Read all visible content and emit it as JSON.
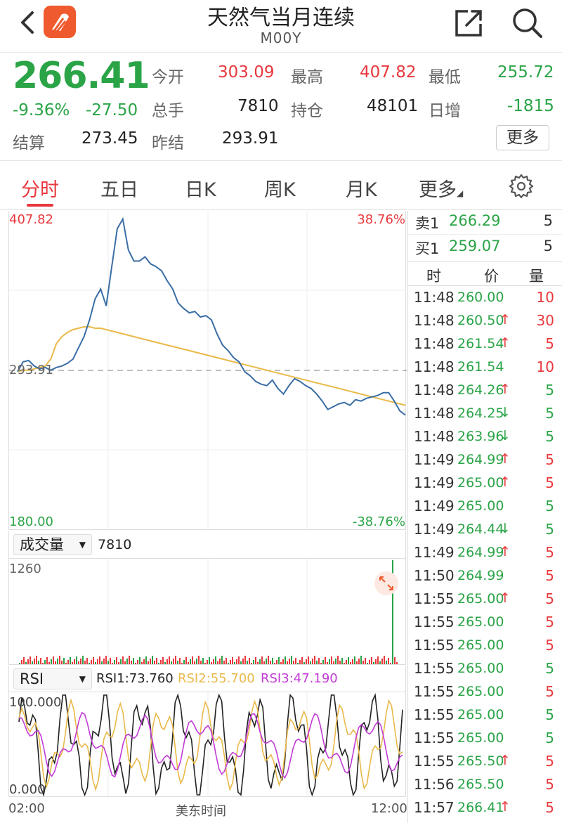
{
  "header": {
    "title": "天然气当月连续",
    "code": "M00Y",
    "back_icon": "chevron-left-icon",
    "logo_icon": "app-logo-icon",
    "share_icon": "share-icon",
    "search_icon": "search-icon"
  },
  "quote": {
    "price": "266.41",
    "change_pct": "-9.36%",
    "change": "-27.50",
    "open_label": "今开",
    "open": "303.09",
    "high_label": "最高",
    "high": "407.82",
    "low_label": "最低",
    "low": "255.72",
    "volume_label": "总手",
    "volume": "7810",
    "oi_label": "持仓",
    "oi": "48101",
    "daily_inc_label": "日增",
    "daily_inc": "-1815",
    "settle_label": "结算",
    "settle": "273.45",
    "prev_settle_label": "昨结",
    "prev_settle": "293.91",
    "more_label": "更多"
  },
  "tabs": [
    {
      "label": "分时",
      "active": true
    },
    {
      "label": "五日"
    },
    {
      "label": "日K"
    },
    {
      "label": "周K"
    },
    {
      "label": "月K"
    },
    {
      "label": "更多"
    }
  ],
  "chart": {
    "y_max": "407.82",
    "y_mid": "293.91",
    "y_min": "180.00",
    "pct_max": "38.76%",
    "pct_min": "-38.76%"
  },
  "volume_panel": {
    "selector": "成交量",
    "value": "7810",
    "max_label": "1260"
  },
  "rsi_panel": {
    "selector": "RSI",
    "rsi1": "RSI1:73.760",
    "rsi2": "RSI2:55.700",
    "rsi3": "RSI3:47.190",
    "max_label": "100.000",
    "min_label": "0.000"
  },
  "time_axis": {
    "start": "02:00",
    "mid": "美东时间",
    "end": "12:00"
  },
  "orderbook": {
    "ask_label": "卖1",
    "ask_price": "266.29",
    "ask_vol": "5",
    "bid_label": "买1",
    "bid_price": "259.07",
    "bid_vol": "5"
  },
  "ticks_header": {
    "time": "时",
    "price": "价",
    "vol": "量"
  },
  "ticks": [
    {
      "time": "11:48",
      "price": "260.00",
      "arrow": "",
      "vol": "10",
      "vc": "red"
    },
    {
      "time": "11:48",
      "price": "260.50",
      "arrow": "↑",
      "vol": "30",
      "vc": "red"
    },
    {
      "time": "11:48",
      "price": "261.54",
      "arrow": "↑",
      "vol": "5",
      "vc": "red"
    },
    {
      "time": "11:48",
      "price": "261.54",
      "arrow": "",
      "vol": "10",
      "vc": "red"
    },
    {
      "time": "11:48",
      "price": "264.26",
      "arrow": "↑",
      "vol": "5",
      "vc": "green"
    },
    {
      "time": "11:48",
      "price": "264.25",
      "arrow": "↓",
      "vol": "5",
      "vc": "green"
    },
    {
      "time": "11:48",
      "price": "263.96",
      "arrow": "↓",
      "vol": "5",
      "vc": "green"
    },
    {
      "time": "11:49",
      "price": "264.99",
      "arrow": "↑",
      "vol": "5",
      "vc": "red"
    },
    {
      "time": "11:49",
      "price": "265.00",
      "arrow": "↑",
      "vol": "5",
      "vc": "red"
    },
    {
      "time": "11:49",
      "price": "265.00",
      "arrow": "",
      "vol": "5",
      "vc": "green"
    },
    {
      "time": "11:49",
      "price": "264.44",
      "arrow": "↓",
      "vol": "5",
      "vc": "green"
    },
    {
      "time": "11:49",
      "price": "264.99",
      "arrow": "↑",
      "vol": "5",
      "vc": "red"
    },
    {
      "time": "11:50",
      "price": "264.99",
      "arrow": "",
      "vol": "5",
      "vc": "red"
    },
    {
      "time": "11:55",
      "price": "265.00",
      "arrow": "↑",
      "vol": "5",
      "vc": "red"
    },
    {
      "time": "11:55",
      "price": "265.00",
      "arrow": "",
      "vol": "5",
      "vc": "red"
    },
    {
      "time": "11:55",
      "price": "265.00",
      "arrow": "",
      "vol": "5",
      "vc": "red"
    },
    {
      "time": "11:55",
      "price": "265.00",
      "arrow": "",
      "vol": "5",
      "vc": "green"
    },
    {
      "time": "11:55",
      "price": "265.00",
      "arrow": "",
      "vol": "5",
      "vc": "red"
    },
    {
      "time": "11:55",
      "price": "265.00",
      "arrow": "",
      "vol": "5",
      "vc": "green"
    },
    {
      "time": "11:55",
      "price": "265.00",
      "arrow": "",
      "vol": "5",
      "vc": "green"
    },
    {
      "time": "11:55",
      "price": "265.50",
      "arrow": "↑",
      "vol": "5",
      "vc": "red"
    },
    {
      "time": "11:56",
      "price": "265.50",
      "arrow": "",
      "vol": "5",
      "vc": "red"
    },
    {
      "time": "11:57",
      "price": "266.41",
      "arrow": "↑",
      "vol": "5",
      "vc": "red"
    }
  ],
  "colors": {
    "up": "#e8383d",
    "down": "#2aa447",
    "price_line": "#3a6ea5",
    "avg_line": "#e9b949",
    "rsi3": "#c23ad6"
  },
  "chart_data": {
    "type": "line",
    "series": [
      {
        "values": [
          293,
          300,
          301,
          297,
          295,
          296,
          294,
          296,
          297,
          299,
          302,
          310,
          318,
          330,
          345,
          352,
          340,
          368,
          395,
          402,
          380,
          372,
          372,
          375,
          370,
          368,
          365,
          358,
          352,
          342,
          338,
          335,
          336,
          332,
          333,
          330,
          320,
          312,
          308,
          303,
          300,
          293,
          290,
          286,
          284,
          283,
          287,
          281,
          277,
          283,
          288,
          286,
          283,
          281,
          277,
          272,
          266,
          268,
          270,
          271,
          269,
          273,
          272,
          274,
          275,
          276,
          278,
          278,
          272,
          265,
          262
        ]
      },
      {
        "values": [
          293,
          294,
          294,
          295,
          296,
          297,
          302,
          313,
          318,
          321,
          323,
          324,
          325,
          325,
          324,
          324,
          323,
          322,
          321,
          320,
          319,
          318,
          317,
          316,
          315,
          314,
          313,
          312,
          311,
          310,
          309,
          308,
          307,
          306,
          305,
          304,
          303,
          302,
          301,
          300,
          299,
          298,
          297,
          296,
          295,
          294,
          293,
          292,
          291,
          290,
          289,
          288,
          287,
          286,
          285,
          284,
          283,
          282,
          281,
          280,
          279,
          278,
          277,
          276,
          275,
          274,
          273,
          272,
          271,
          270,
          269
        ]
      }
    ],
    "ylim": [
      180.0,
      407.82
    ]
  }
}
